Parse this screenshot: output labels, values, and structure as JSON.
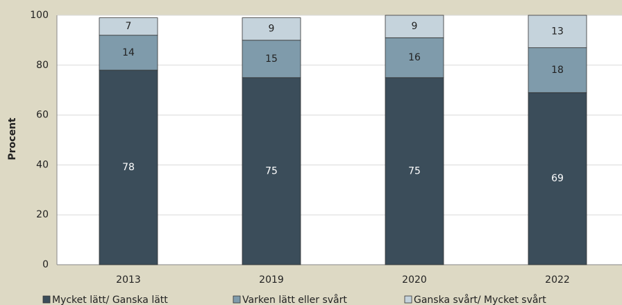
{
  "chart_data": {
    "type": "stacked-bar",
    "y_label": "Procent",
    "categories": [
      "2013",
      "2019",
      "2020",
      "2022"
    ],
    "series": [
      {
        "name": "Mycket lätt/ Ganska lätt",
        "color": "#3b4d5a",
        "values": [
          78,
          75,
          75,
          69
        ]
      },
      {
        "name": "Varken lätt eller svårt",
        "color": "#7f9bab",
        "values": [
          14,
          15,
          16,
          18
        ]
      },
      {
        "name": "Ganska svårt/ Mycket svårt",
        "color": "#c5d3dc",
        "values": [
          7,
          9,
          9,
          13
        ]
      }
    ],
    "ylim": [
      0,
      100
    ],
    "yticks": [
      0,
      20,
      40,
      60,
      80,
      100
    ],
    "grid": true
  }
}
